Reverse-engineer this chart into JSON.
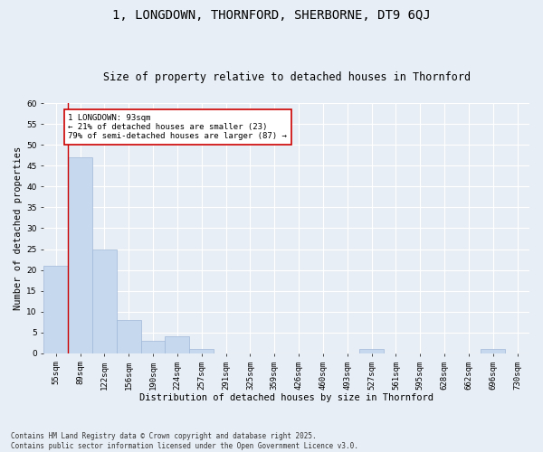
{
  "title": "1, LONGDOWN, THORNFORD, SHERBORNE, DT9 6QJ",
  "subtitle": "Size of property relative to detached houses in Thornford",
  "xlabel": "Distribution of detached houses by size in Thornford",
  "ylabel": "Number of detached properties",
  "footnote": "Contains HM Land Registry data © Crown copyright and database right 2025.\nContains public sector information licensed under the Open Government Licence v3.0.",
  "categories": [
    "55sqm",
    "89sqm",
    "122sqm",
    "156sqm",
    "190sqm",
    "224sqm",
    "257sqm",
    "291sqm",
    "325sqm",
    "359sqm",
    "426sqm",
    "460sqm",
    "493sqm",
    "527sqm",
    "561sqm",
    "595sqm",
    "628sqm",
    "662sqm",
    "696sqm",
    "730sqm"
  ],
  "values": [
    21,
    47,
    25,
    8,
    3,
    4,
    1,
    0,
    0,
    0,
    0,
    0,
    0,
    1,
    0,
    0,
    0,
    0,
    1,
    0
  ],
  "bar_color": "#c5d8ed",
  "bar_edge_color": "#a0b8d8",
  "subject_line_color": "#cc0000",
  "annotation_text": "1 LONGDOWN: 93sqm\n← 21% of detached houses are smaller (23)\n79% of semi-detached houses are larger (87) →",
  "annotation_box_color": "#ffffff",
  "annotation_box_edge_color": "#cc0000",
  "annotation_fontsize": 6.5,
  "ylim": [
    0,
    60
  ],
  "yticks": [
    0,
    5,
    10,
    15,
    20,
    25,
    30,
    35,
    40,
    45,
    50,
    55,
    60
  ],
  "background_color": "#e8eef5",
  "grid_color": "#ffffff",
  "title_fontsize": 10,
  "subtitle_fontsize": 8.5,
  "axis_label_fontsize": 7.5,
  "tick_fontsize": 6.5,
  "footnote_fontsize": 5.5
}
